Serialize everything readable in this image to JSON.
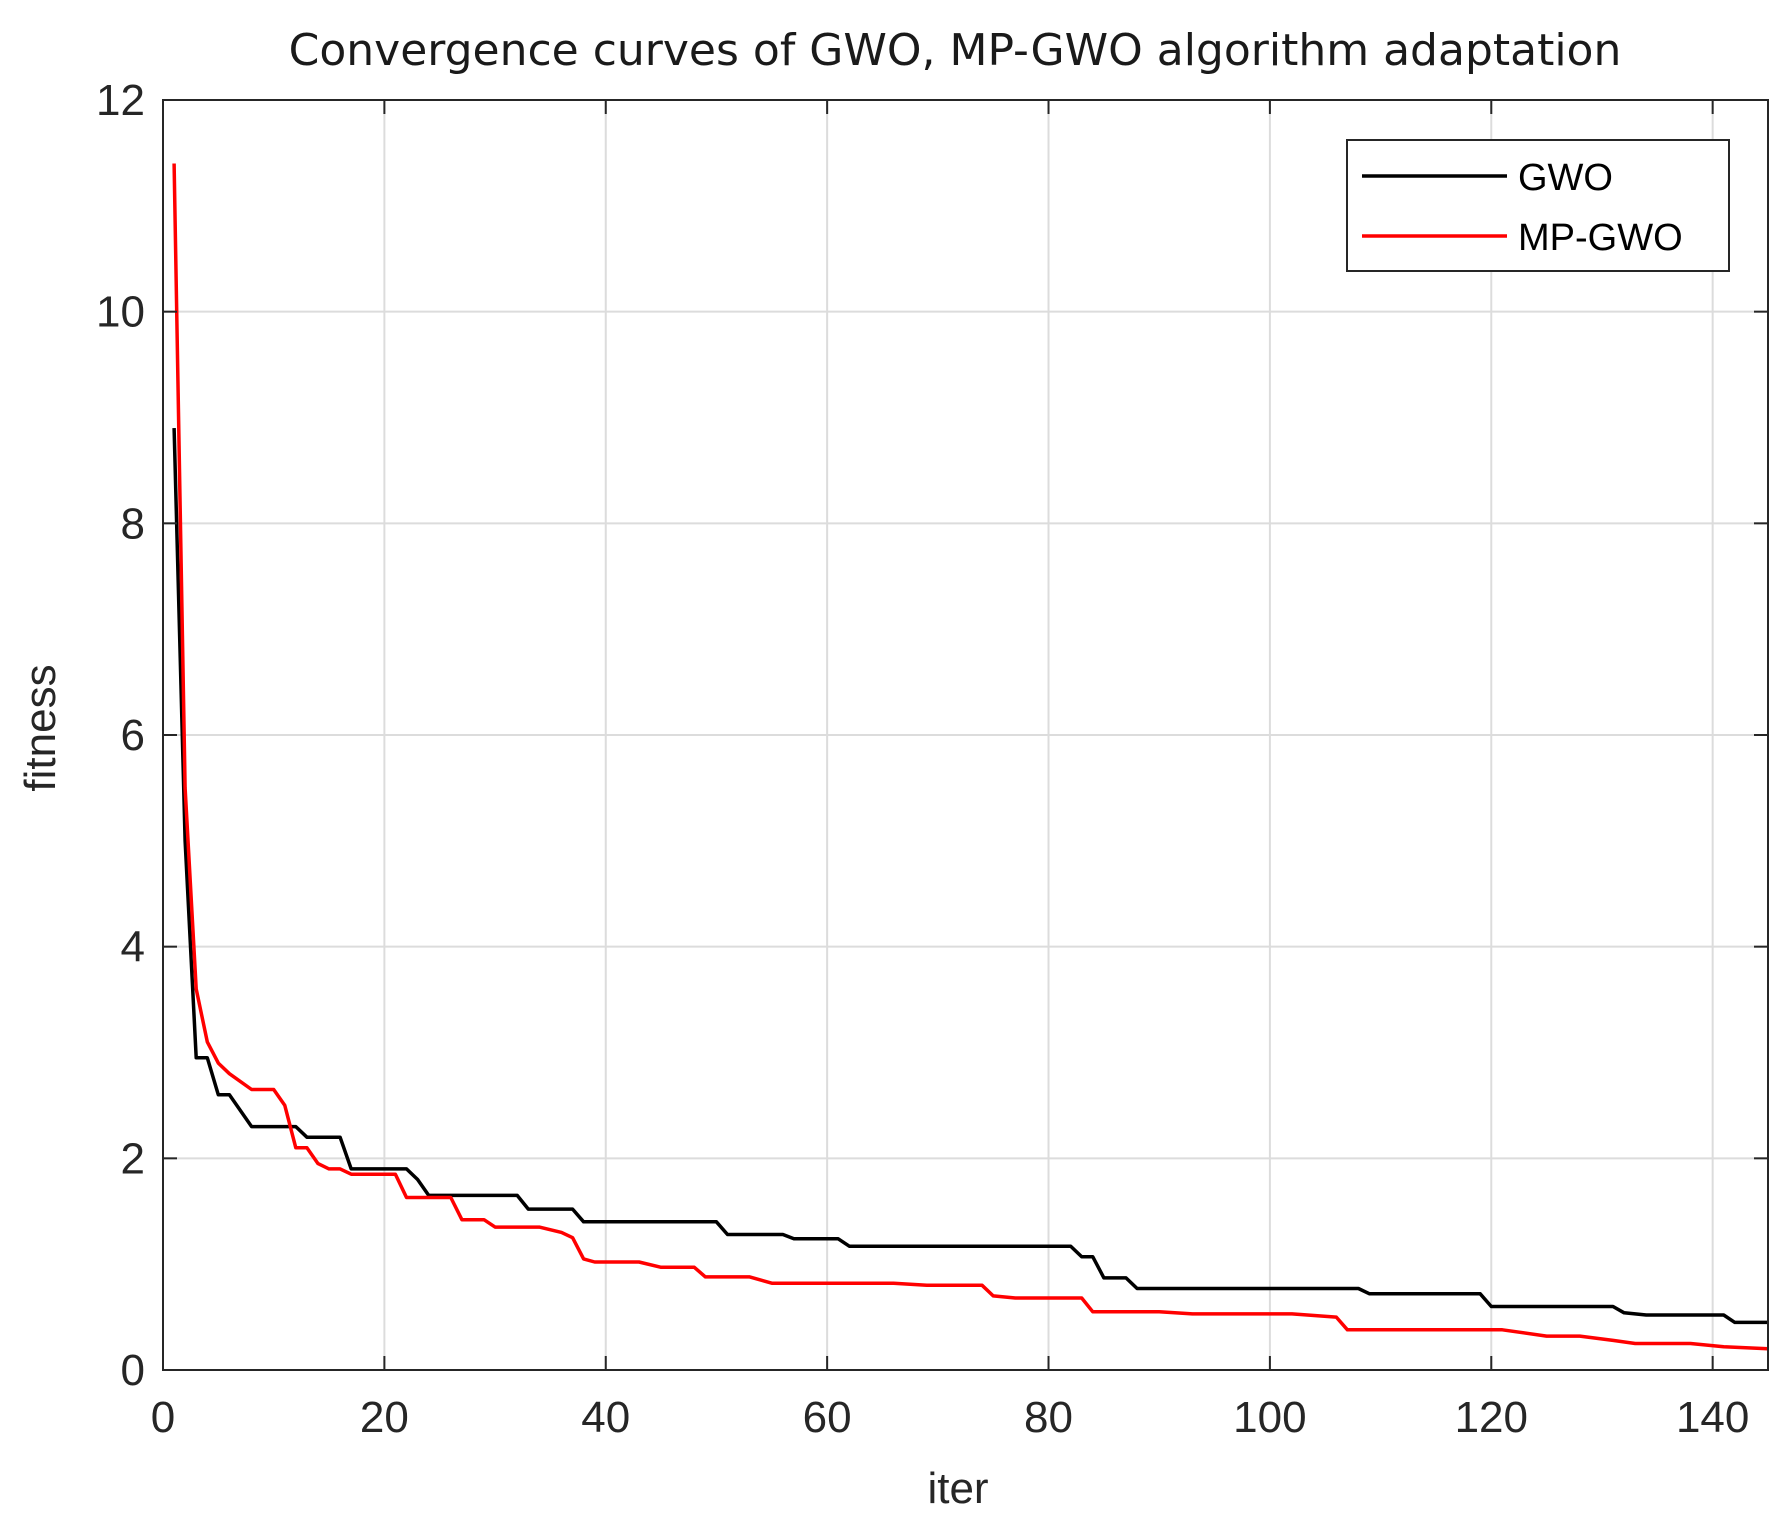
{
  "chart_data": {
    "type": "line",
    "title": "Convergence curves of GWO, MP-GWO algorithm adaptation",
    "xlabel": "iter",
    "ylabel": "fitness",
    "xlim": [
      0,
      145
    ],
    "ylim": [
      0,
      12
    ],
    "xticks": [
      0,
      20,
      40,
      60,
      80,
      100,
      120,
      140
    ],
    "yticks": [
      0,
      2,
      4,
      6,
      8,
      10,
      12
    ],
    "grid": true,
    "legend_position": "top-right",
    "colors": {
      "GWO": "#000000",
      "MP-GWO": "#ff0000",
      "grid": "#dcdcdc",
      "axis": "#262626"
    },
    "series": [
      {
        "name": "GWO",
        "points": [
          [
            1,
            8.9
          ],
          [
            2,
            5.0
          ],
          [
            3,
            2.95
          ],
          [
            4,
            2.95
          ],
          [
            5,
            2.6
          ],
          [
            6,
            2.6
          ],
          [
            8,
            2.3
          ],
          [
            12,
            2.3
          ],
          [
            13,
            2.2
          ],
          [
            16,
            2.2
          ],
          [
            17,
            1.9
          ],
          [
            22,
            1.9
          ],
          [
            23,
            1.8
          ],
          [
            24,
            1.65
          ],
          [
            32,
            1.65
          ],
          [
            33,
            1.52
          ],
          [
            37,
            1.52
          ],
          [
            38,
            1.4
          ],
          [
            50,
            1.4
          ],
          [
            51,
            1.28
          ],
          [
            56,
            1.28
          ],
          [
            57,
            1.24
          ],
          [
            61,
            1.24
          ],
          [
            62,
            1.17
          ],
          [
            82,
            1.17
          ],
          [
            83,
            1.07
          ],
          [
            84,
            1.07
          ],
          [
            85,
            0.87
          ],
          [
            87,
            0.87
          ],
          [
            88,
            0.77
          ],
          [
            108,
            0.77
          ],
          [
            109,
            0.72
          ],
          [
            119,
            0.72
          ],
          [
            120,
            0.6
          ],
          [
            131,
            0.6
          ],
          [
            132,
            0.54
          ],
          [
            134,
            0.52
          ],
          [
            141,
            0.52
          ],
          [
            142,
            0.45
          ],
          [
            145,
            0.45
          ]
        ]
      },
      {
        "name": "MP-GWO",
        "points": [
          [
            1,
            11.4
          ],
          [
            2,
            5.5
          ],
          [
            3,
            3.6
          ],
          [
            4,
            3.1
          ],
          [
            5,
            2.9
          ],
          [
            6,
            2.8
          ],
          [
            8,
            2.65
          ],
          [
            10,
            2.65
          ],
          [
            11,
            2.5
          ],
          [
            12,
            2.1
          ],
          [
            13,
            2.1
          ],
          [
            14,
            1.95
          ],
          [
            15,
            1.9
          ],
          [
            16,
            1.9
          ],
          [
            17,
            1.85
          ],
          [
            21,
            1.85
          ],
          [
            22,
            1.63
          ],
          [
            26,
            1.63
          ],
          [
            27,
            1.42
          ],
          [
            29,
            1.42
          ],
          [
            30,
            1.35
          ],
          [
            34,
            1.35
          ],
          [
            36,
            1.3
          ],
          [
            37,
            1.25
          ],
          [
            38,
            1.05
          ],
          [
            39,
            1.02
          ],
          [
            43,
            1.02
          ],
          [
            45,
            0.97
          ],
          [
            48,
            0.97
          ],
          [
            49,
            0.88
          ],
          [
            53,
            0.88
          ],
          [
            55,
            0.82
          ],
          [
            66,
            0.82
          ],
          [
            69,
            0.8
          ],
          [
            74,
            0.8
          ],
          [
            75,
            0.7
          ],
          [
            77,
            0.68
          ],
          [
            83,
            0.68
          ],
          [
            84,
            0.55
          ],
          [
            90,
            0.55
          ],
          [
            93,
            0.53
          ],
          [
            102,
            0.53
          ],
          [
            106,
            0.5
          ],
          [
            107,
            0.38
          ],
          [
            121,
            0.38
          ],
          [
            125,
            0.32
          ],
          [
            128,
            0.32
          ],
          [
            131,
            0.28
          ],
          [
            133,
            0.25
          ],
          [
            138,
            0.25
          ],
          [
            141,
            0.22
          ],
          [
            145,
            0.2
          ]
        ]
      }
    ]
  }
}
